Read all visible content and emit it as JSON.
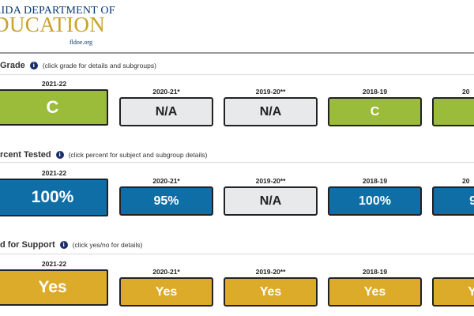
{
  "header": {
    "logo_line1": "RIDA DEPARTMENT OF",
    "logo_line2": "DUCATION",
    "logo_url": "fldoe.org"
  },
  "sections": [
    {
      "title": "Grade",
      "hint": "(click grade for details and subgroups)",
      "current": {
        "year": "2021-22",
        "value": "C",
        "color": "green"
      },
      "tiles": [
        {
          "year": "2020-21*",
          "value": "N/A",
          "color": "gray"
        },
        {
          "year": "2019-20**",
          "value": "N/A",
          "color": "gray"
        },
        {
          "year": "2018-19",
          "value": "C",
          "color": "green"
        },
        {
          "year": "20",
          "value": "",
          "color": "green"
        }
      ]
    },
    {
      "title": "rcent Tested",
      "hint": "(click percent for subject and subgroup details)",
      "current": {
        "year": "2021-22",
        "value": "100%",
        "color": "blue"
      },
      "tiles": [
        {
          "year": "2020-21*",
          "value": "95%",
          "color": "blue"
        },
        {
          "year": "2019-20**",
          "value": "N/A",
          "color": "gray"
        },
        {
          "year": "2018-19",
          "value": "100%",
          "color": "blue"
        },
        {
          "year": "20",
          "value": "9",
          "color": "blue"
        }
      ]
    },
    {
      "title": "d for Support",
      "hint": "(click yes/no for details)",
      "current": {
        "year": "2021-22",
        "value": "Yes",
        "color": "gold"
      },
      "tiles": [
        {
          "year": "2020-21*",
          "value": "Yes",
          "color": "gold"
        },
        {
          "year": "2019-20**",
          "value": "Yes",
          "color": "gold"
        },
        {
          "year": "2018-19",
          "value": "Yes",
          "color": "gold"
        },
        {
          "year": "",
          "value": "Y",
          "color": "gold"
        }
      ]
    }
  ],
  "colors": {
    "green": "#9bbb3a",
    "gray": "#e8e9eb",
    "blue": "#0f6ea6",
    "gold": "#dcab2a"
  }
}
